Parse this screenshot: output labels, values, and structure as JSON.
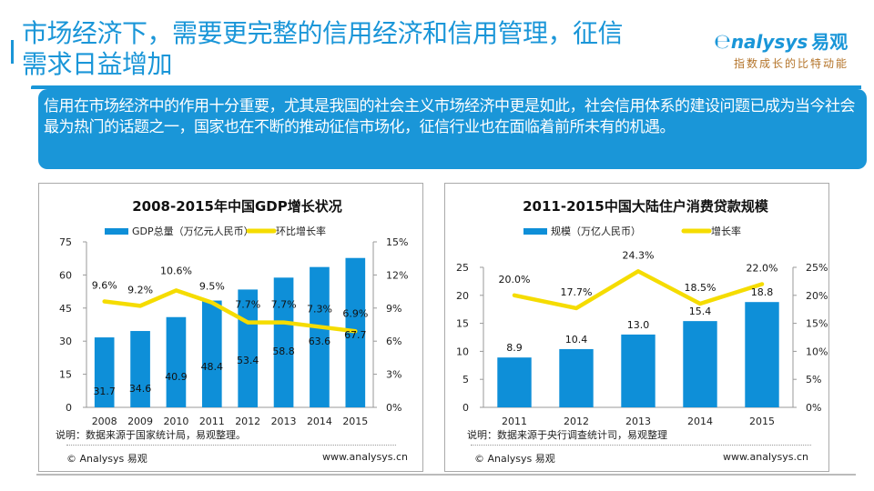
{
  "header": {
    "title": "市场经济下，需要更完整的信用经济和信用管理，征信需求日益增加",
    "logo_brand": "nalysys",
    "logo_brand_cn": "易观",
    "logo_slogan": "指数成长的比特动能"
  },
  "summary": "信用在市场经济中的作用十分重要，尤其是我国的社会主义市场经济中更是如此，社会信用体系的建设问题已成为当今社会最为热门的话题之一，国家也在不断的推动征信市场化，征信行业也在面临着前所未有的机遇。",
  "colors": {
    "accent": "#1a96d8",
    "bar": "#0e8fd8",
    "line": "#f5dc00"
  },
  "chart_data": [
    {
      "type": "bar",
      "title": "2008-2015年中国GDP增长状况",
      "categories": [
        "2008",
        "2009",
        "2010",
        "2011",
        "2012",
        "2013",
        "2014",
        "2015"
      ],
      "series": [
        {
          "name": "GDP总量（万亿元人民币）",
          "type": "bar",
          "axis": "left",
          "values": [
            31.7,
            34.6,
            40.9,
            48.4,
            53.4,
            58.8,
            63.6,
            67.7
          ],
          "labels": [
            "31.7",
            "34.6",
            "40.9",
            "48.4",
            "53.4",
            "58.8",
            "63.6",
            "67.7"
          ]
        },
        {
          "name": "环比增长率",
          "type": "line",
          "axis": "right",
          "values": [
            9.6,
            9.2,
            10.6,
            9.5,
            7.7,
            7.7,
            7.3,
            6.9
          ],
          "labels": [
            "9.6%",
            "9.2%",
            "10.6%",
            "9.5%",
            "7.7%",
            "7.7%",
            "7.3%",
            "6.9%"
          ]
        }
      ],
      "ylim": [
        0,
        75
      ],
      "yticks": [
        "0",
        "15",
        "30",
        "45",
        "60",
        "75"
      ],
      "y2lim": [
        0,
        15
      ],
      "y2ticks": [
        "0%",
        "3%",
        "6%",
        "9%",
        "12%",
        "15%"
      ],
      "legend": "top",
      "note": "说明：数据来源于国家统计局，易观整理。",
      "footer_left": "© Analysys 易观",
      "footer_right": "www.analysys.cn"
    },
    {
      "type": "bar",
      "title": "2011-2015中国大陆住户消费贷款规模",
      "categories": [
        "2011",
        "2012",
        "2013",
        "2014",
        "2015"
      ],
      "series": [
        {
          "name": "规模（万亿人民币）",
          "type": "bar",
          "axis": "left",
          "values": [
            8.9,
            10.4,
            13.0,
            15.4,
            18.8
          ],
          "labels": [
            "8.9",
            "10.4",
            "13.0",
            "15.4",
            "18.8"
          ]
        },
        {
          "name": "增长率",
          "type": "line",
          "axis": "right",
          "values": [
            20.0,
            17.7,
            24.3,
            18.5,
            22.0
          ],
          "labels": [
            "20.0%",
            "17.7%",
            "24.3%",
            "18.5%",
            "22.0%"
          ]
        }
      ],
      "ylim": [
        0,
        25
      ],
      "yticks": [
        "0",
        "5",
        "10",
        "15",
        "20",
        "25"
      ],
      "y2lim": [
        0,
        25
      ],
      "y2ticks": [
        "0%",
        "5%",
        "10%",
        "15%",
        "20%",
        "25%"
      ],
      "legend": "top",
      "note": "说明：数据来源于央行调查统计司，易观整理",
      "footer_left": "© Analysys 易观",
      "footer_right": "www.analysys.cn"
    }
  ]
}
